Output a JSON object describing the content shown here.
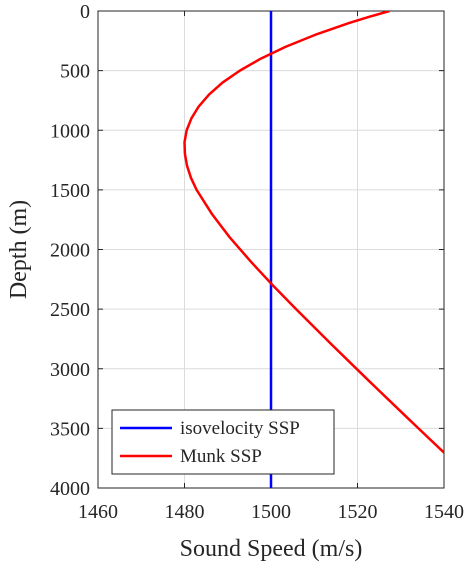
{
  "chart_data": {
    "type": "line",
    "xlabel": "Sound Speed (m/s)",
    "ylabel": "Depth (m)",
    "xlim": [
      1460,
      1540
    ],
    "ylim": [
      0,
      4000
    ],
    "y_reversed": true,
    "xticks": [
      1460,
      1480,
      1500,
      1520,
      1540
    ],
    "yticks": [
      0,
      500,
      1000,
      1500,
      2000,
      2500,
      3000,
      3500,
      4000
    ],
    "grid": true,
    "legend": {
      "position": "bottom-left"
    },
    "colors": {
      "isovelocity": "#0000ff",
      "munk": "#ff0000"
    },
    "series": [
      {
        "name": "isovelocity SSP",
        "color": "#0000ff",
        "points": [
          [
            1500,
            0
          ],
          [
            1500,
            4000
          ]
        ]
      },
      {
        "name": "Munk SSP",
        "color": "#ff0000",
        "points": [
          [
            1527.4,
            0
          ],
          [
            1522.6,
            50
          ],
          [
            1518.1,
            100
          ],
          [
            1510.2,
            200
          ],
          [
            1503.4,
            300
          ],
          [
            1497.6,
            400
          ],
          [
            1492.8,
            500
          ],
          [
            1488.8,
            600
          ],
          [
            1485.7,
            700
          ],
          [
            1483.3,
            800
          ],
          [
            1481.6,
            900
          ],
          [
            1480.5,
            1000
          ],
          [
            1480.0,
            1100
          ],
          [
            1480.1,
            1200
          ],
          [
            1480.6,
            1300
          ],
          [
            1481.5,
            1400
          ],
          [
            1482.8,
            1500
          ],
          [
            1486.3,
            1700
          ],
          [
            1490.5,
            1900
          ],
          [
            1495.3,
            2100
          ],
          [
            1500.4,
            2300
          ],
          [
            1505.8,
            2500
          ],
          [
            1514.1,
            2800
          ],
          [
            1522.6,
            3100
          ],
          [
            1531.2,
            3400
          ],
          [
            1534.1,
            3500
          ],
          [
            1539.9,
            3700
          ],
          [
            1542.8,
            3800
          ],
          [
            1548.6,
            4000
          ]
        ]
      }
    ]
  }
}
